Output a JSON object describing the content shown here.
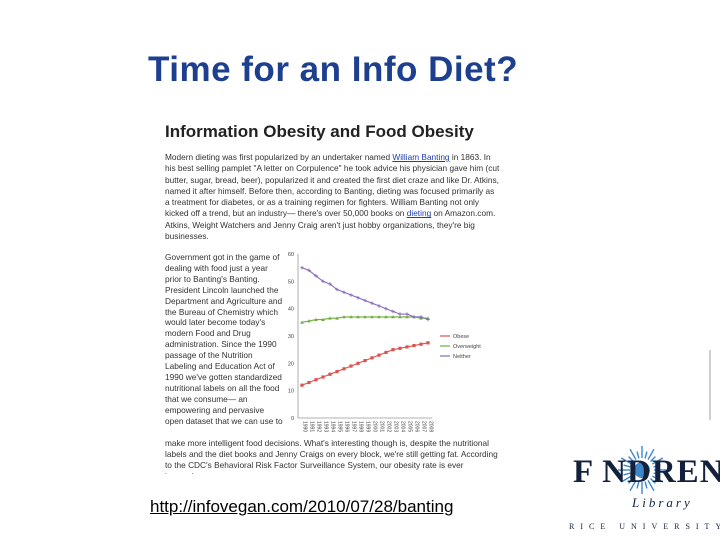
{
  "slide": {
    "title": "Time for an Info Diet?",
    "url": "http://infovegan.com/2010/07/28/banting"
  },
  "article": {
    "heading": "Information Obesity and Food Obesity",
    "intro_before_link": "Modern dieting was first popularized by an undertaker named ",
    "intro_link": "William Banting",
    "intro_after_link": " in 1863. In his best selling pamplet \"A letter on Corpulence\" he took advice his physician gave him (cut butter, sugar, bread, beer), popularized it and created the first diet craze and like Dr. Atkins, named it after himself. Before then, according to Banting, dieting was focused primarily as a treatment for diabetes, or as a training regimen for fighters. William Banting not only kicked off a trend, but an industry— there's over 50,000 books on ",
    "intro_link2": "dieting",
    "intro_end": " on Amazon.com. Atkins, Weight Watchers and Jenny Craig aren't just hobby organizations, they're big businesses.",
    "side_text": "Government got in the game of dealing with food just a year prior to Banting's Banting. President Lincoln launched the Department and Agriculture and the Bureau of Chemistry which would later become today's modern Food and Drug administration. Since the 1990 passage of the Nutrition Labeling and Education Act of 1990 we've gotten standardized nutritional labels on all the food that we consume— an empowering and pervasive open dataset that we can use to",
    "bottom_text": "make more intelligent food decisions. What's interesting though is, despite the nutritional labels and the diet books and Jenny Craigs on every block, we're still getting fat. According to the CDC's Behavioral Risk Factor Surveillance System, our obesity rate is ever increasing."
  },
  "chart_data": {
    "type": "line",
    "x": [
      "1990",
      "1991",
      "1992",
      "1993",
      "1994",
      "1995",
      "1996",
      "1997",
      "1998",
      "1999",
      "2000",
      "2001",
      "2002",
      "2003",
      "2004",
      "2005",
      "2006",
      "2007",
      "2008"
    ],
    "ylim": [
      0,
      60
    ],
    "yticks": [
      "0",
      "10",
      "20",
      "30",
      "40",
      "50",
      "60"
    ],
    "legend_position": "right",
    "series": [
      {
        "name": "Obese",
        "color": "#d9534f",
        "values": [
          12,
          13,
          14,
          15,
          16,
          17,
          18,
          19,
          20,
          21,
          22,
          23,
          24,
          25,
          25.5,
          26,
          26.5,
          27,
          27.5
        ]
      },
      {
        "name": "Overweight",
        "color": "#6fae3c",
        "values": [
          35,
          35.5,
          36,
          36,
          36.5,
          36.5,
          37,
          37,
          37,
          37,
          37,
          37,
          37,
          37,
          37,
          37,
          37,
          36.5,
          36.5
        ]
      },
      {
        "name": "Neither",
        "color": "#8a6bbd",
        "values": [
          55,
          54,
          52,
          50,
          49,
          47,
          46,
          45,
          44,
          43,
          42,
          41,
          40,
          39,
          38,
          38,
          37,
          37,
          36
        ]
      }
    ]
  },
  "logo": {
    "word": "F NDREN",
    "sub": "Library",
    "university": "RICE UNIVERSITY"
  }
}
